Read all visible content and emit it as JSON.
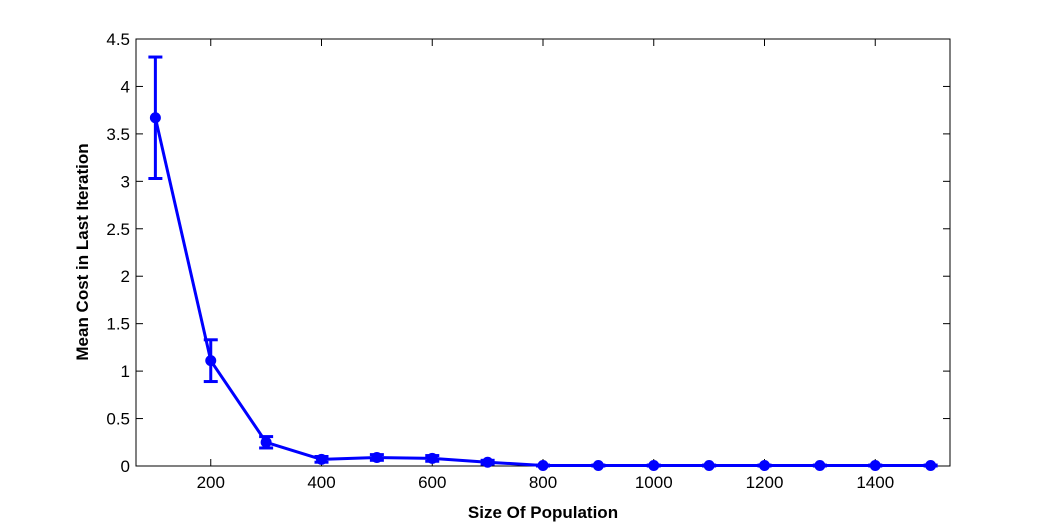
{
  "chart_data": {
    "type": "line",
    "title": "",
    "xlabel": "Size Of Population",
    "ylabel": "Mean Cost in Last Iteration",
    "xlim": [
      65,
      1535
    ],
    "ylim": [
      0,
      4.5
    ],
    "x_ticks": [
      200,
      400,
      600,
      800,
      1000,
      1200,
      1400
    ],
    "x_tick_labels": [
      "200",
      "400",
      "600",
      "800",
      "1000",
      "1200",
      "1400"
    ],
    "y_ticks": [
      0,
      0.5,
      1,
      1.5,
      2,
      2.5,
      3,
      3.5,
      4,
      4.5
    ],
    "y_tick_labels": [
      "0",
      "0.5",
      "1",
      "1.5",
      "2",
      "2.5",
      "3",
      "3.5",
      "4",
      "4.5"
    ],
    "grid": false,
    "legend": "none",
    "series": [
      {
        "color": "#0000ff",
        "marker": "circle",
        "x": [
          100,
          200,
          300,
          400,
          500,
          600,
          700,
          800,
          900,
          1000,
          1100,
          1200,
          1300,
          1400,
          1500
        ],
        "y": [
          3.67,
          1.11,
          0.25,
          0.07,
          0.09,
          0.08,
          0.04,
          0.005,
          0.005,
          0.005,
          0.005,
          0.005,
          0.005,
          0.005,
          0.005
        ],
        "error": [
          0.64,
          0.22,
          0.06,
          0.03,
          0.03,
          0.03,
          0.02,
          0.005,
          0.005,
          0.005,
          0.005,
          0.005,
          0.005,
          0.005,
          0.005
        ]
      }
    ]
  }
}
